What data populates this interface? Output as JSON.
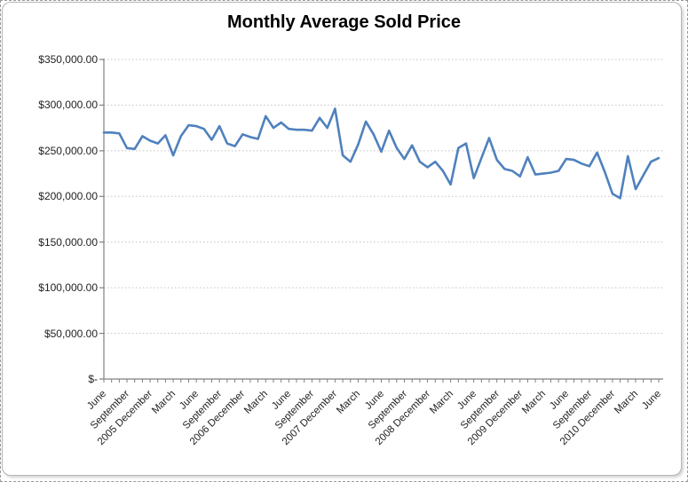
{
  "chart_data": {
    "type": "line",
    "title": "Monthly Average Sold Price",
    "xlabel": "",
    "ylabel": "",
    "ylim": [
      0,
      350000
    ],
    "y_step": 50000,
    "grid": "horizontal-dotted",
    "legend": "none",
    "line_color": "#4F81BD",
    "axis_color": "#808080",
    "gridline_color": "#c2c2c2",
    "y_tick_labels": [
      "$350,000.00",
      "$300,000.00",
      "$250,000.00",
      "$200,000.00",
      "$150,000.00",
      "$100,000.00",
      "$50,000.00",
      "$-"
    ],
    "x_tick_labels": [
      "June",
      "September",
      "2005 December",
      "March",
      "June",
      "September",
      "2006 December",
      "March",
      "June",
      "September",
      "2007 December",
      "March",
      "June",
      "September",
      "2008 December",
      "March",
      "June",
      "September",
      "2009 December",
      "March",
      "June",
      "September",
      "2010 December",
      "March",
      "June"
    ],
    "x_tick_every_n_months": 3,
    "x_months": [
      "Jun 2005",
      "Jul 2005",
      "Aug 2005",
      "Sep 2005",
      "Oct 2005",
      "Nov 2005",
      "Dec 2005",
      "Jan 2006",
      "Feb 2006",
      "Mar 2006",
      "Apr 2006",
      "May 2006",
      "Jun 2006",
      "Jul 2006",
      "Aug 2006",
      "Sep 2006",
      "Oct 2006",
      "Nov 2006",
      "Dec 2006",
      "Jan 2007",
      "Feb 2007",
      "Mar 2007",
      "Apr 2007",
      "May 2007",
      "Jun 2007",
      "Jul 2007",
      "Aug 2007",
      "Sep 2007",
      "Oct 2007",
      "Nov 2007",
      "Dec 2007",
      "Jan 2008",
      "Feb 2008",
      "Mar 2008",
      "Apr 2008",
      "May 2008",
      "Jun 2008",
      "Jul 2008",
      "Aug 2008",
      "Sep 2008",
      "Oct 2008",
      "Nov 2008",
      "Dec 2008",
      "Jan 2009",
      "Feb 2009",
      "Mar 2009",
      "Apr 2009",
      "May 2009",
      "Jun 2009",
      "Jul 2009",
      "Aug 2009",
      "Sep 2009",
      "Oct 2009",
      "Nov 2009",
      "Dec 2009",
      "Jan 2010",
      "Feb 2010",
      "Mar 2010",
      "Apr 2010",
      "May 2010",
      "Jun 2010",
      "Jul 2010",
      "Aug 2010",
      "Sep 2010",
      "Oct 2010",
      "Nov 2010",
      "Dec 2010",
      "Jan 2011",
      "Feb 2011",
      "Mar 2011",
      "Apr 2011",
      "May 2011",
      "Jun 2011"
    ],
    "series": [
      {
        "name": "Monthly Average Sold Price",
        "values": [
          270000,
          270000,
          269000,
          253000,
          252000,
          266000,
          261000,
          258000,
          267000,
          245000,
          266000,
          278000,
          277000,
          274000,
          262000,
          277000,
          258000,
          255000,
          268000,
          265000,
          263000,
          288000,
          275000,
          281000,
          274000,
          273000,
          273000,
          272000,
          286000,
          275000,
          296000,
          245000,
          238000,
          257000,
          282000,
          268000,
          249000,
          272000,
          253000,
          241000,
          256000,
          238000,
          232000,
          238000,
          228000,
          213000,
          253000,
          258000,
          220000,
          242000,
          264000,
          240000,
          230000,
          228000,
          222000,
          243000,
          224000,
          225000,
          226000,
          228000,
          241000,
          240000,
          236000,
          233000,
          248000,
          227000,
          203000,
          198000,
          244000,
          208000,
          223000,
          238000,
          242000
        ]
      }
    ]
  }
}
